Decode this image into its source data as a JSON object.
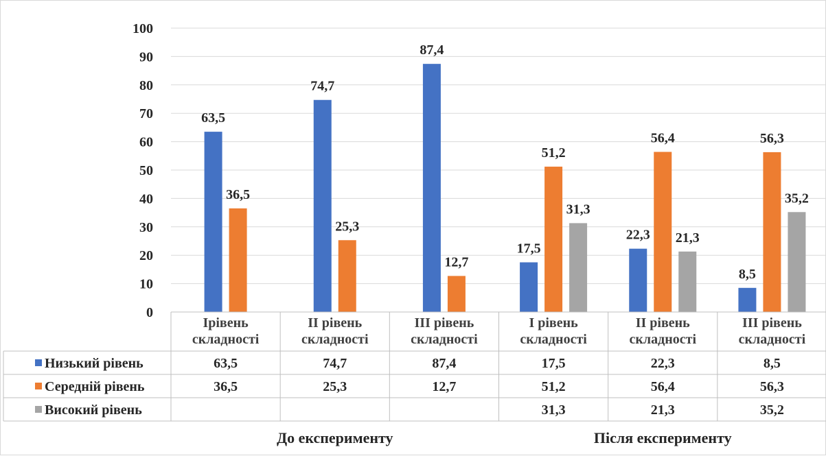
{
  "chart_data": {
    "type": "bar",
    "title": "",
    "xlabel": "",
    "ylabel": "",
    "ylim": [
      0,
      100
    ],
    "yticks": [
      0,
      10,
      20,
      30,
      40,
      50,
      60,
      70,
      80,
      90,
      100
    ],
    "grid": true,
    "legend": "data-table",
    "categories": [
      [
        "Ірівень",
        "складності"
      ],
      [
        "ІІ рівень",
        "складності"
      ],
      [
        "ІІІ рівень",
        "складності"
      ],
      [
        "І рівень",
        "складності"
      ],
      [
        "ІІ рівень",
        "складності"
      ],
      [
        "ІІІ рівень",
        "складності"
      ]
    ],
    "groups": [
      {
        "label": "До експерименту",
        "from": 0,
        "to": 2
      },
      {
        "label": "Після експерименту",
        "from": 3,
        "to": 5
      }
    ],
    "series": [
      {
        "name": "Низький рівень",
        "color": "#4472C4",
        "values": [
          63.5,
          74.7,
          87.4,
          17.5,
          22.3,
          8.5
        ],
        "labels": [
          "63,5",
          "74,7",
          "87,4",
          "17,5",
          "22,3",
          "8,5"
        ]
      },
      {
        "name": "Середній рівень",
        "color": "#ED7D31",
        "values": [
          36.5,
          25.3,
          12.7,
          51.2,
          56.4,
          56.3
        ],
        "labels": [
          "36,5",
          "25,3",
          "12,7",
          "51,2",
          "56,4",
          "56,3"
        ]
      },
      {
        "name": "Високий рівень",
        "color": "#A5A5A5",
        "values": [
          null,
          null,
          null,
          31.3,
          21.3,
          35.2
        ],
        "labels": [
          "",
          "",
          "",
          "31,3",
          "21,3",
          "35,2"
        ]
      }
    ]
  }
}
